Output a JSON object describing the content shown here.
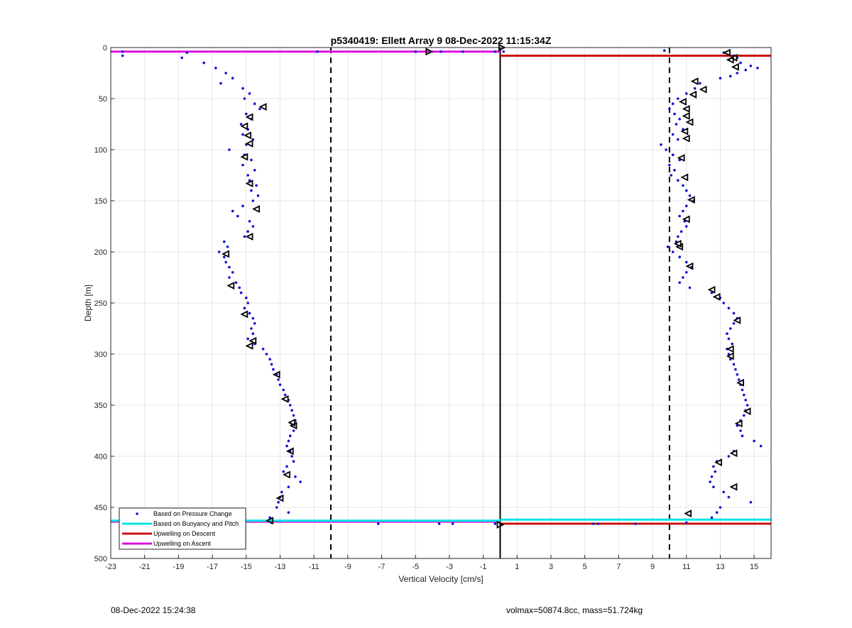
{
  "chart_data": {
    "type": "scatter",
    "title": "p5340419: Ellett Array 9 08-Dec-2022 11:15:34Z",
    "xlabel": "Vertical Velocity [cm/s]",
    "ylabel": "Depth [m]",
    "xlim": [
      -23,
      16
    ],
    "ylim": [
      0,
      500
    ],
    "y_reversed": true,
    "grid": true,
    "legend_position": "bottom-left",
    "x_ticks": [
      -23,
      -21,
      -19,
      -17,
      -15,
      -13,
      -11,
      -9,
      -7,
      -5,
      -3,
      -1,
      1,
      3,
      5,
      7,
      9,
      11,
      13,
      15
    ],
    "y_ticks": [
      0,
      50,
      100,
      150,
      200,
      250,
      300,
      350,
      400,
      450,
      500
    ],
    "colors": {
      "pressure": "#1010d0",
      "buoyancy": "#00e5e5",
      "descent": "#cc1111",
      "ascent": "#dd11dd",
      "zero_line": "#000000",
      "threshold": "#000000"
    },
    "reference_lines": {
      "zero_velocity": 0,
      "thresholds": [
        -10,
        10
      ]
    },
    "series": [
      {
        "name": "Based on Pressure Change",
        "style": "dots",
        "profiles": [
          {
            "depth": [
              5,
              8,
              10,
              15,
              20,
              25,
              30,
              35,
              40,
              45,
              50,
              55,
              60,
              65,
              70,
              75,
              80,
              85,
              90,
              95,
              100,
              105,
              110,
              115,
              120,
              125,
              130,
              135,
              140,
              145,
              150,
              155,
              160,
              165,
              170,
              175,
              180,
              185,
              190,
              195,
              200,
              205,
              210,
              215,
              220,
              225,
              230,
              235,
              240,
              245,
              250,
              255,
              260,
              265,
              270,
              275,
              280,
              285,
              290,
              295,
              300,
              305,
              310,
              315,
              320,
              325,
              330,
              335,
              340,
              345,
              350,
              355,
              360,
              365,
              370,
              375,
              380,
              385,
              390,
              395,
              400,
              405,
              410,
              415,
              420,
              425,
              430,
              435,
              440,
              445,
              450,
              455,
              460,
              465
            ],
            "velocity": [
              -18.5,
              -22.3,
              -18.8,
              -17.5,
              -16.8,
              -16.2,
              -15.8,
              -16.5,
              -15.2,
              -14.8,
              -15.1,
              -14.5,
              -14.2,
              -15.0,
              -14.7,
              -15.3,
              -14.9,
              -15.2,
              -14.6,
              -15.0,
              -16.0,
              -15.1,
              -14.7,
              -15.2,
              -14.5,
              -14.9,
              -14.8,
              -14.4,
              -14.7,
              -14.3,
              -14.6,
              -15.2,
              -15.8,
              -15.5,
              -14.8,
              -14.6,
              -14.9,
              -15.1,
              -16.3,
              -16.1,
              -16.6,
              -16.3,
              -16.2,
              -16.0,
              -15.8,
              -16.0,
              -15.6,
              -15.4,
              -15.3,
              -15.0,
              -14.9,
              -15.1,
              -14.8,
              -14.6,
              -14.5,
              -14.7,
              -14.6,
              -14.9,
              -14.5,
              -14.0,
              -13.8,
              -13.6,
              -13.5,
              -13.4,
              -13.2,
              -13.1,
              -13.0,
              -12.8,
              -12.7,
              -12.5,
              -12.4,
              -12.3,
              -12.2,
              -12.1,
              -12.3,
              -12.2,
              -12.4,
              -12.5,
              -12.6,
              -12.4,
              -12.3,
              -12.2,
              -12.6,
              -12.8,
              -12.1,
              -11.8,
              -12.5,
              -12.9,
              -13.0,
              -13.1,
              -13.2,
              -12.5,
              -13.6,
              -13.5
            ]
          },
          {
            "depth": [
              3,
              5,
              8,
              10,
              12,
              15,
              18,
              20,
              22,
              25,
              28,
              30,
              35,
              40,
              45,
              50,
              55,
              60,
              65,
              70,
              75,
              80,
              85,
              90,
              95,
              100,
              105,
              110,
              115,
              120,
              125,
              130,
              135,
              140,
              145,
              150,
              155,
              160,
              165,
              170,
              175,
              180,
              185,
              190,
              195,
              200,
              205,
              210,
              215,
              220,
              225,
              230,
              235,
              240,
              245,
              250,
              255,
              260,
              265,
              270,
              275,
              280,
              285,
              290,
              295,
              300,
              305,
              310,
              315,
              320,
              325,
              330,
              335,
              340,
              345,
              350,
              355,
              360,
              365,
              370,
              375,
              380,
              385,
              390,
              395,
              400,
              405,
              410,
              415,
              420,
              425,
              430,
              435,
              440,
              445,
              450,
              455,
              460,
              465
            ],
            "velocity": [
              9.7,
              13.2,
              13.8,
              14.0,
              13.5,
              14.2,
              14.8,
              15.2,
              14.5,
              14.0,
              13.6,
              13.0,
              11.8,
              11.5,
              11.0,
              10.5,
              10.2,
              10.0,
              10.3,
              10.6,
              10.4,
              10.8,
              10.2,
              10.5,
              9.5,
              9.8,
              10.2,
              10.6,
              10.0,
              10.3,
              10.1,
              10.5,
              10.8,
              11.0,
              11.2,
              11.4,
              11.0,
              10.8,
              10.6,
              10.9,
              11.0,
              10.7,
              10.5,
              10.4,
              9.9,
              10.2,
              10.6,
              11.0,
              11.3,
              11.0,
              10.8,
              10.6,
              11.2,
              12.5,
              13.0,
              13.2,
              13.5,
              13.8,
              14.0,
              13.8,
              13.6,
              13.4,
              13.5,
              13.7,
              13.4,
              13.5,
              13.6,
              13.8,
              13.9,
              14.0,
              14.1,
              14.2,
              14.3,
              14.4,
              14.5,
              14.6,
              14.5,
              14.4,
              14.2,
              14.0,
              14.2,
              14.3,
              15.0,
              15.4,
              13.8,
              13.5,
              12.8,
              12.6,
              12.7,
              12.5,
              12.4,
              12.6,
              13.2,
              13.5,
              14.8,
              13.0,
              12.8,
              12.5,
              11.0
            ]
          },
          {
            "depth": [
              4,
              4,
              4,
              4,
              4,
              4,
              4,
              466,
              466,
              466,
              466,
              466,
              466,
              466
            ],
            "velocity": [
              -22.3,
              -10.8,
              -5.0,
              -3.5,
              -2.2,
              -0.3,
              0.2,
              -7.2,
              -3.6,
              -2.8,
              -0.3,
              5.5,
              5.8,
              8.0
            ]
          }
        ]
      },
      {
        "name": "Based on Buoyancy and Pitch",
        "style": "triangles",
        "profiles": [
          {
            "depth": [
              4,
              58,
              68,
              77,
              86,
              94,
              107,
              133,
              158,
              185,
              202,
              233,
              261,
              287,
              292,
              320,
              344,
              367,
              370,
              395,
              418,
              441,
              463
            ],
            "velocity": [
              -4.2,
              -14.0,
              -14.8,
              -15.1,
              -14.9,
              -14.8,
              -15.1,
              -14.8,
              -14.4,
              -14.8,
              -16.2,
              -15.9,
              -15.1,
              -14.6,
              -14.8,
              -13.2,
              -12.7,
              -12.3,
              -12.2,
              -12.4,
              -12.6,
              -13.0,
              -13.6
            ]
          },
          {
            "depth": [
              5,
              10,
              12,
              19,
              33,
              41,
              46,
              53,
              60,
              67,
              73,
              82,
              89,
              108,
              127,
              149,
              168,
              192,
              195,
              214,
              237,
              244,
              267,
              295,
              302,
              328,
              356,
              368,
              397,
              406,
              430,
              456
            ],
            "velocity": [
              13.4,
              13.8,
              13.6,
              13.9,
              11.5,
              12.0,
              11.4,
              10.8,
              11.0,
              11.0,
              11.2,
              10.9,
              11.0,
              10.7,
              10.9,
              11.3,
              11.0,
              10.5,
              10.6,
              11.2,
              12.5,
              12.8,
              14.0,
              13.6,
              13.6,
              14.2,
              14.6,
              14.1,
              13.8,
              12.9,
              13.8,
              11.1
            ]
          },
          {
            "depth": [
              0,
              467
            ],
            "velocity": [
              0.1,
              0.0
            ]
          }
        ]
      },
      {
        "name": "Upwelling on Descent",
        "style": "segments",
        "segments": [
          {
            "depth": 8,
            "from": 0,
            "to": 16
          },
          {
            "depth": 466,
            "from": 0,
            "to": 16
          }
        ]
      },
      {
        "name": "Upwelling on Ascent",
        "style": "segments",
        "segments": [
          {
            "depth": 4,
            "from": -23,
            "to": 0
          },
          {
            "depth": 464,
            "from": -23,
            "to": 0
          }
        ]
      },
      {
        "name": "Buoyancy segments",
        "style": "segments",
        "segments": [
          {
            "depth": 462,
            "from": 0,
            "to": 16
          },
          {
            "depth": 463,
            "from": -23,
            "to": 0
          }
        ]
      }
    ]
  },
  "footer": {
    "left": "08-Dec-2022 15:24:38",
    "right": "volmax=50874.8cc, mass=51.724kg"
  }
}
